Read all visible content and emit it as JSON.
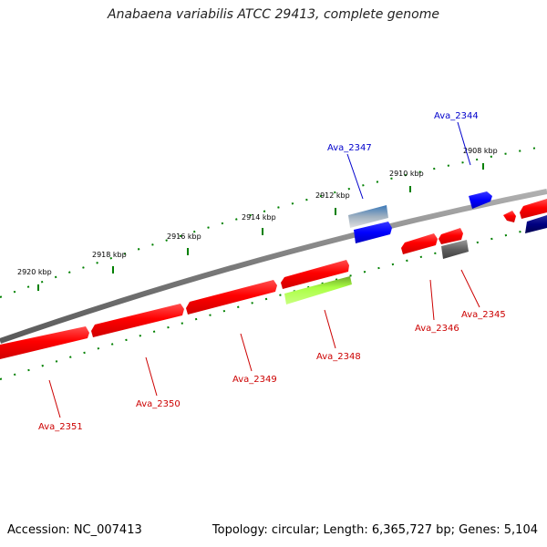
{
  "title": "Anabaena variabilis ATCC 29413, complete genome",
  "footer": {
    "accession": "Accession: NC_007413",
    "stats": "Topology: circular; Length: 6,365,727 bp; Genes: 5,104"
  },
  "colors": {
    "forward_gene": "#ff0000",
    "label_red": "#cc0000",
    "label_blue": "#0000cc",
    "backbone": "#808080",
    "ticks": "#008000"
  },
  "scale_labels": [
    "2920 kbp",
    "2918 kbp",
    "2916 kbp",
    "2914 kbp",
    "2912 kbp",
    "2910 kbp",
    "2908 kbp"
  ],
  "genes": [
    {
      "id": "Ava_2351",
      "color": "#ff0000"
    },
    {
      "id": "Ava_2350",
      "color": "#ff0000"
    },
    {
      "id": "Ava_2349",
      "color": "#ff0000"
    },
    {
      "id": "Ava_2348",
      "color": "#99ff33"
    },
    {
      "id": "Ava_2347",
      "color": "#4682b4"
    },
    {
      "id": "Ava_2346",
      "color": "#ff0000"
    },
    {
      "id": "Ava_2345",
      "color": "#707070"
    },
    {
      "id": "Ava_2344",
      "color": "#0000ff"
    }
  ]
}
